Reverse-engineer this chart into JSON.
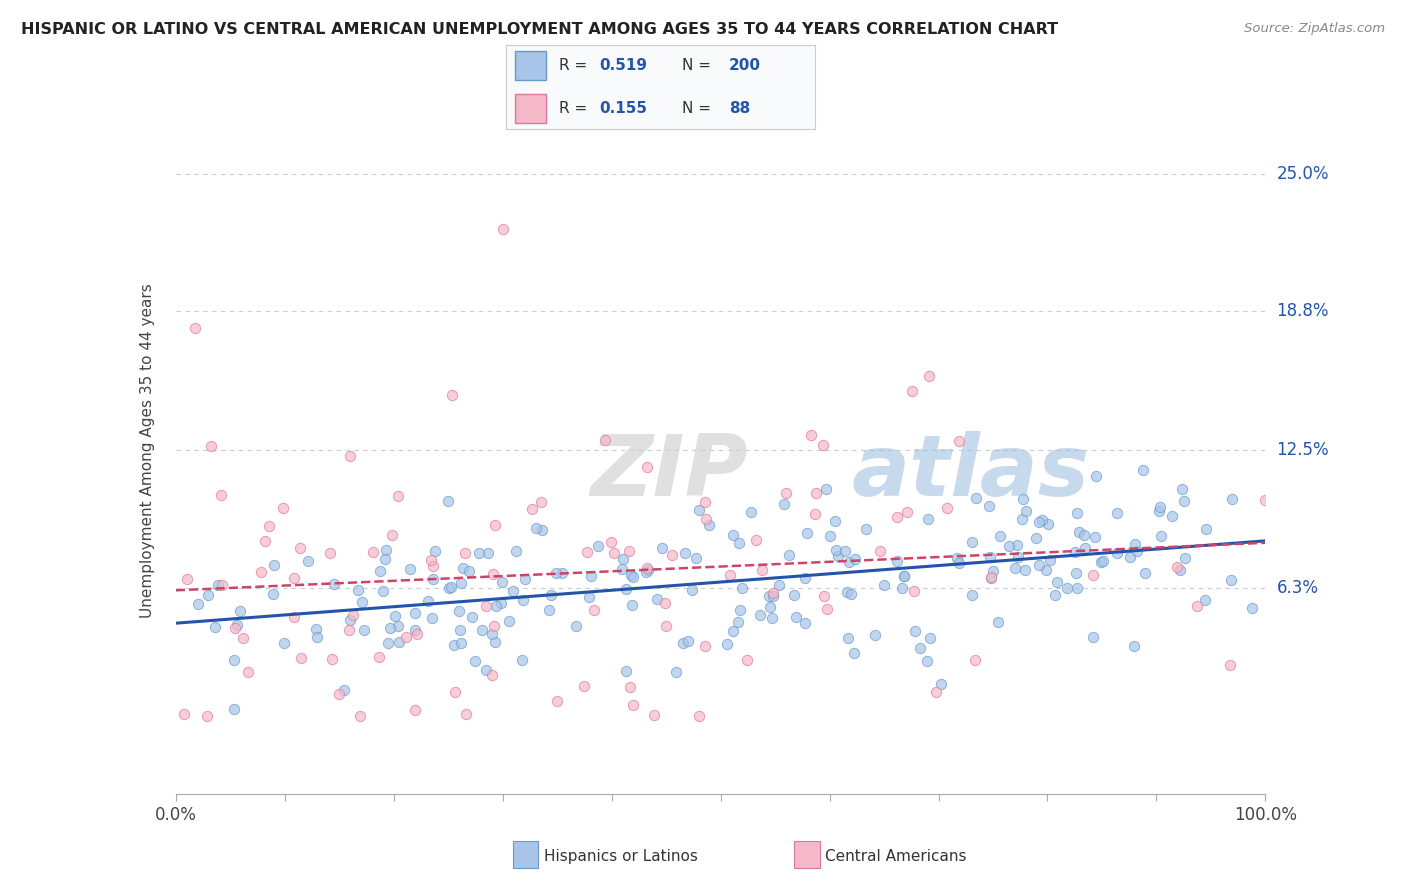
{
  "title": "HISPANIC OR LATINO VS CENTRAL AMERICAN UNEMPLOYMENT AMONG AGES 35 TO 44 YEARS CORRELATION CHART",
  "source": "Source: ZipAtlas.com",
  "ylabel": "Unemployment Among Ages 35 to 44 years",
  "xlim": [
    0,
    100
  ],
  "ylim": [
    -3,
    28
  ],
  "ytick_vals": [
    6.3,
    12.5,
    18.8,
    25.0
  ],
  "ytick_labels": [
    "6.3%",
    "12.5%",
    "18.8%",
    "25.0%"
  ],
  "series1": {
    "label": "Hispanics or Latinos",
    "R": 0.519,
    "N": 200,
    "color": "#a8c4e8",
    "edge_color": "#6699cc",
    "trend_color": "#2255aa"
  },
  "series2": {
    "label": "Central Americans",
    "R": 0.155,
    "N": 88,
    "color": "#f5b8c8",
    "edge_color": "#dd7799",
    "trend_color": "#cc4466"
  },
  "watermark_zip_color": "#cccccc",
  "watermark_atlas_color": "#99bbdd",
  "background_color": "#ffffff",
  "grid_color": "#cccccc",
  "legend_face_color": "#f8fafc",
  "legend_edge_color": "#cccccc"
}
